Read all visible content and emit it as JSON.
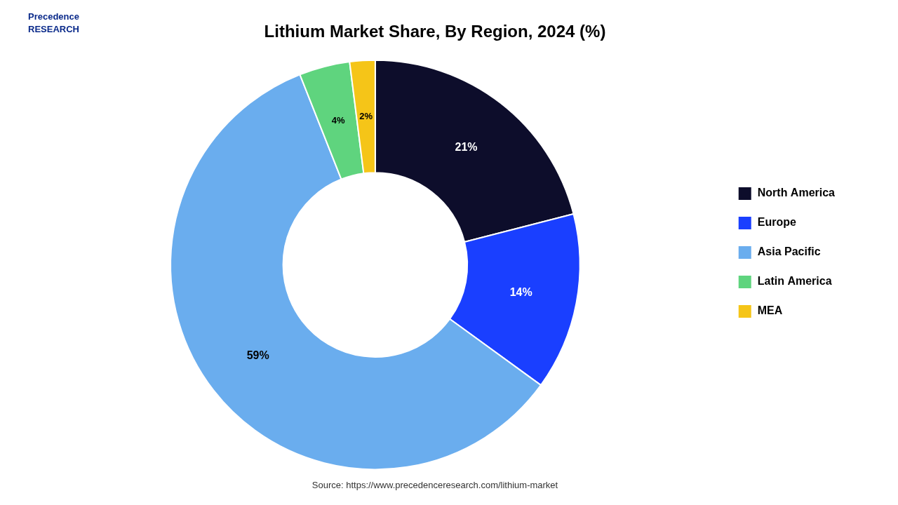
{
  "chart_data": {
    "type": "doughnut",
    "title": "Lithium Market Share, By Region, 2024 (%)",
    "categories": [
      "North America",
      "Europe",
      "Asia Pacific",
      "Latin America",
      "MEA"
    ],
    "values": [
      21,
      14,
      59,
      4,
      2
    ],
    "value_labels": [
      "21%",
      "14%",
      "59%",
      "4%",
      "2%"
    ],
    "colors": [
      "#0d0d2b",
      "#1a3fff",
      "#6aadee",
      "#5fd47e",
      "#f5c518"
    ],
    "data_labels": true,
    "legend": "right",
    "annotations": [
      "Precedence\nRESEARCH",
      "Source: https://www.precedenceresearch.com/lithium-market"
    ]
  }
}
